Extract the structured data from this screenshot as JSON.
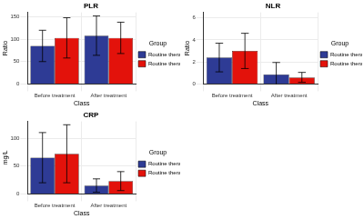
{
  "chart_data": [
    {
      "type": "bar",
      "title": "PLR",
      "x_label": "Class",
      "y_label": "Ratio",
      "categories": [
        "Before treatment",
        "After treatment"
      ],
      "series": [
        {
          "name": "Routine therapy",
          "color": "#2e3b95",
          "values": [
            85,
            108
          ],
          "errors": [
            35,
            44
          ]
        },
        {
          "name": "Routine therapy+BBR",
          "color": "#e3120b",
          "values": [
            103,
            103
          ],
          "errors": [
            45,
            35
          ]
        }
      ],
      "ylim": [
        0,
        160
      ],
      "yticks": [
        0,
        50,
        100,
        150
      ],
      "grid": true,
      "legend": "right",
      "legend_title": "Group"
    },
    {
      "type": "bar",
      "title": "NLR",
      "x_label": "Class",
      "y_label": "Ratio",
      "categories": [
        "Before treatment",
        "After treatment"
      ],
      "series": [
        {
          "name": "Routine therapy",
          "color": "#2e3b95",
          "values": [
            2.4,
            0.85
          ],
          "errors": [
            1.3,
            1.1
          ]
        },
        {
          "name": "Routine therapy+BBR",
          "color": "#e3120b",
          "values": [
            3.0,
            0.6
          ],
          "errors": [
            1.6,
            0.45
          ]
        }
      ],
      "ylim": [
        0,
        6.5
      ],
      "yticks": [
        0,
        2,
        4,
        6
      ],
      "grid": true,
      "legend": "right",
      "legend_title": "Group"
    },
    {
      "type": "bar",
      "title": "CRP",
      "x_label": "Class",
      "y_label": "mg/L",
      "categories": [
        "Before treatment",
        "After treatment"
      ],
      "series": [
        {
          "name": "Routine therapy",
          "color": "#2e3b95",
          "values": [
            65,
            15
          ],
          "errors": [
            45,
            12
          ]
        },
        {
          "name": "Routine therapy+BBR",
          "color": "#e3120b",
          "values": [
            72,
            23
          ],
          "errors": [
            52,
            17
          ]
        }
      ],
      "ylim": [
        0,
        130
      ],
      "yticks": [
        0,
        50,
        100
      ],
      "grid": true,
      "legend": "right",
      "legend_title": "Group"
    }
  ]
}
